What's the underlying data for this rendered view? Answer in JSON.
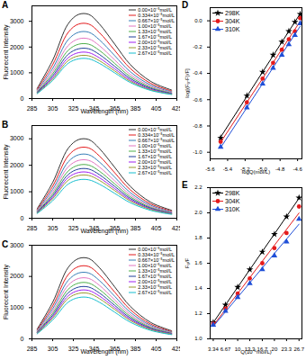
{
  "chart_data": [
    {
      "title": "A",
      "type": "line",
      "xlabel": "Wavelength (nm)",
      "ylabel": "Fluorecent Intensity",
      "x": [
        290,
        305,
        320,
        330,
        340,
        350,
        365,
        380,
        400,
        420
      ],
      "xlim": [
        285,
        425
      ],
      "xticks": [
        285,
        305,
        325,
        345,
        365,
        385,
        405,
        425
      ],
      "ylim": [
        0,
        3600
      ],
      "yticks": [
        0,
        1000,
        2000,
        3000
      ],
      "legend": "top-right",
      "series": [
        {
          "name": "0.00×10⁻⁵mol/L",
          "color": "#333333",
          "values": [
            396,
            1485,
            2904,
            3267,
            3267,
            2904,
            2112,
            1320,
            660,
            330
          ]
        },
        {
          "name": "0.334×10⁻⁵mol/L",
          "color": "#e41a1c",
          "values": [
            350,
            1314,
            2570,
            2891,
            2891,
            2570,
            1869,
            1168,
            584,
            292
          ]
        },
        {
          "name": "0.667×10⁻⁵mol/L",
          "color": "#377eb8",
          "values": [
            312,
            1170,
            2288,
            2574,
            2574,
            2288,
            1664,
            1040,
            520,
            260
          ]
        },
        {
          "name": "1.00×10⁻⁵mol/L",
          "color": "#e377c2",
          "values": [
            281,
            1053,
            2059,
            2317,
            2317,
            2059,
            1498,
            936,
            468,
            234
          ]
        },
        {
          "name": "1.33×10⁻⁵mol/L",
          "color": "#4daf4a",
          "values": [
            256,
            959,
            1874,
            2109,
            2109,
            1874,
            1363,
            852,
            426,
            213
          ]
        },
        {
          "name": "1.67×10⁻⁵mol/L",
          "color": "#1f3f99",
          "values": [
            234,
            878,
            1716,
            1931,
            1931,
            1716,
            1248,
            780,
            390,
            195
          ]
        },
        {
          "name": "2.00×10⁻⁵mol/L",
          "color": "#a020f0",
          "values": [
            216,
            810,
            1584,
            1782,
            1782,
            1584,
            1152,
            720,
            360,
            180
          ]
        },
        {
          "name": "2.33×10⁻⁵mol/L",
          "color": "#9a9a2e",
          "values": [
            201,
            754,
            1474,
            1658,
            1658,
            1474,
            1072,
            670,
            335,
            168
          ]
        },
        {
          "name": "2.67×10⁻⁵mol/L",
          "color": "#17becf",
          "values": [
            187,
            701,
            1370,
            1541,
            1541,
            1370,
            996,
            623,
            311,
            156
          ]
        }
      ]
    },
    {
      "title": "B",
      "type": "line",
      "xlabel": "Wavelength (nm)",
      "ylabel": "Fluorecent Intensity",
      "x": [
        290,
        305,
        320,
        330,
        340,
        350,
        365,
        380,
        400,
        420
      ],
      "xlim": [
        285,
        425
      ],
      "xticks": [
        285,
        305,
        325,
        345,
        365,
        385,
        405,
        425
      ],
      "ylim": [
        0,
        3500
      ],
      "yticks": [
        0,
        1000,
        2000,
        3000
      ],
      "legend": "top-right",
      "series": [
        {
          "name": "0.00×10⁻⁵mol/L",
          "color": "#333333",
          "values": [
            360,
            1350,
            2640,
            2970,
            2970,
            2640,
            1920,
            1200,
            600,
            300
          ]
        },
        {
          "name": "0.334×10⁻⁵mol/L",
          "color": "#e41a1c",
          "values": [
            322,
            1206,
            2358,
            2653,
            2653,
            2358,
            1715,
            1072,
            536,
            268
          ]
        },
        {
          "name": "0.667×10⁻⁵mol/L",
          "color": "#377eb8",
          "values": [
            290,
            1089,
            2130,
            2396,
            2396,
            2130,
            1549,
            968,
            484,
            242
          ]
        },
        {
          "name": "1.00×10⁻⁵mol/L",
          "color": "#e377c2",
          "values": [
            265,
            992,
            1940,
            2183,
            2183,
            1940,
            1411,
            882,
            441,
            221
          ]
        },
        {
          "name": "1.33×10⁻⁵mol/L",
          "color": "#4daf4a",
          "values": [
            243,
            911,
            1782,
            2005,
            2005,
            1782,
            1296,
            810,
            405,
            203
          ]
        },
        {
          "name": "1.67×10⁻⁵mol/L",
          "color": "#1f3f99",
          "values": [
            225,
            844,
            1650,
            1856,
            1856,
            1650,
            1200,
            750,
            375,
            188
          ]
        },
        {
          "name": "2.00×10⁻⁵mol/L",
          "color": "#a020f0",
          "values": [
            209,
            785,
            1536,
            1728,
            1728,
            1536,
            1117,
            698,
            349,
            175
          ]
        },
        {
          "name": "2.33×10⁻⁵mol/L",
          "color": "#9a9a2e",
          "values": [
            196,
            734,
            1434,
            1614,
            1614,
            1434,
            1043,
            652,
            326,
            163
          ]
        },
        {
          "name": "2.67×10⁻⁵mol/L",
          "color": "#17becf",
          "values": [
            176,
            659,
            1289,
            1450,
            1450,
            1289,
            938,
            586,
            293,
            147
          ]
        }
      ]
    },
    {
      "title": "C",
      "type": "line",
      "xlabel": "Wavelength (nm)",
      "ylabel": "Fluorecent Intensity",
      "x": [
        290,
        305,
        320,
        330,
        340,
        350,
        365,
        380,
        400,
        420
      ],
      "xlim": [
        285,
        425
      ],
      "xticks": [
        285,
        305,
        325,
        345,
        365,
        385,
        405,
        425
      ],
      "ylim": [
        0,
        3000
      ],
      "yticks": [
        0,
        1000,
        2000,
        3000
      ],
      "legend": "top-right",
      "series": [
        {
          "name": "0.00×10⁻⁵mol/L",
          "color": "#333333",
          "values": [
            312,
            1170,
            2288,
            2574,
            2574,
            2288,
            1664,
            1040,
            520,
            260
          ]
        },
        {
          "name": "0.334×10⁻⁵mol/L",
          "color": "#e41a1c",
          "values": [
            281,
            1053,
            2059,
            2317,
            2317,
            2059,
            1498,
            936,
            468,
            234
          ]
        },
        {
          "name": "0.667×10⁻⁵mol/L",
          "color": "#377eb8",
          "values": [
            256,
            959,
            1874,
            2109,
            2109,
            1874,
            1363,
            852,
            426,
            213
          ]
        },
        {
          "name": "1.00×10⁻⁵mol/L",
          "color": "#e377c2",
          "values": [
            235,
            880,
            1720,
            1935,
            1935,
            1720,
            1251,
            782,
            391,
            196
          ]
        },
        {
          "name": "1.33×10⁻⁵mol/L",
          "color": "#4daf4a",
          "values": [
            217,
            812,
            1588,
            1787,
            1787,
            1588,
            1155,
            722,
            361,
            181
          ]
        },
        {
          "name": "1.67×10⁻⁵mol/L",
          "color": "#1f3f99",
          "values": [
            201,
            754,
            1474,
            1658,
            1658,
            1474,
            1072,
            670,
            335,
            168
          ]
        },
        {
          "name": "2.00×10⁻⁵mol/L",
          "color": "#a020f0",
          "values": [
            188,
            704,
            1377,
            1549,
            1549,
            1377,
            1002,
            626,
            313,
            157
          ]
        },
        {
          "name": "2.33×10⁻⁵mol/L",
          "color": "#9a9a2e",
          "values": [
            176,
            662,
            1294,
            1455,
            1455,
            1294,
            941,
            588,
            294,
            147
          ]
        },
        {
          "name": "2.67×10⁻⁵mol/L",
          "color": "#17becf",
          "values": [
            160,
            601,
            1175,
            1322,
            1322,
            1175,
            854,
            534,
            267,
            134
          ]
        }
      ]
    },
    {
      "title": "D",
      "type": "scatter",
      "xlabel": "logQ(mol/L)",
      "ylabel": "log[(F₀-F)/F]",
      "x": [
        -5.48,
        -5.18,
        -5.0,
        -4.88,
        -4.78,
        -4.7,
        -4.63,
        -4.57
      ],
      "xlim": [
        -5.6,
        -4.55
      ],
      "xticks": [
        -5.6,
        -5.4,
        -5.2,
        {
          "value": -5,
          "label": "-5.0"
        },
        -4.8,
        -4.6
      ],
      "ylim": [
        -1.05,
        0.1
      ],
      "yticks": [
        {
          "value": -1,
          "label": "-1.0"
        },
        -0.8,
        -0.6,
        -0.4,
        -0.2,
        {
          "value": 0,
          "label": "0.0"
        }
      ],
      "legend": "top-left",
      "series": [
        {
          "name": "298K",
          "color": "#000000",
          "marker": "star",
          "line_style": "solid",
          "values": [
            -0.89,
            -0.57,
            -0.39,
            -0.26,
            -0.16,
            -0.08,
            -0.01,
            0.05
          ]
        },
        {
          "name": "304K",
          "color": "#e41a1c",
          "marker": "circle",
          "line_style": "solid",
          "values": [
            -0.92,
            -0.62,
            -0.44,
            -0.32,
            -0.22,
            -0.14,
            -0.08,
            0.02
          ]
        },
        {
          "name": "310K",
          "color": "#1f4fd8",
          "marker": "triangle",
          "line_style": "solid",
          "values": [
            -0.96,
            -0.66,
            -0.48,
            -0.36,
            -0.26,
            -0.18,
            -0.11,
            -0.02
          ]
        }
      ]
    },
    {
      "title": "E",
      "type": "scatter",
      "xlabel": "Q(10⁻⁶mol/L)",
      "ylabel": "F₀/F",
      "x": [
        3.34,
        6.67,
        10,
        13.3,
        16.7,
        20,
        23.3,
        26.7
      ],
      "xlim": [
        2.5,
        27.5
      ],
      "xticks": [
        3.34,
        6.67,
        10,
        13.3,
        16.7,
        20,
        23.3,
        26.7
      ],
      "ylim": [
        1.0,
        2.2
      ],
      "yticks": [
        {
          "value": 1,
          "label": "1.0"
        },
        1.2,
        1.4,
        1.6,
        1.8,
        {
          "value": 2,
          "label": "2.0"
        },
        2.2
      ],
      "legend": "top-left",
      "series": [
        {
          "name": "298K",
          "color": "#000000",
          "marker": "star",
          "line_style": "solid",
          "values": [
            1.13,
            1.27,
            1.41,
            1.55,
            1.69,
            1.83,
            1.97,
            2.12
          ]
        },
        {
          "name": "304K",
          "color": "#e41a1c",
          "marker": "circle",
          "line_style": "solid",
          "values": [
            1.12,
            1.24,
            1.36,
            1.48,
            1.6,
            1.72,
            1.84,
            2.05
          ]
        },
        {
          "name": "310K",
          "color": "#1f4fd8",
          "marker": "triangle",
          "line_style": "solid",
          "values": [
            1.11,
            1.22,
            1.33,
            1.44,
            1.55,
            1.66,
            1.77,
            1.95
          ]
        }
      ]
    }
  ]
}
